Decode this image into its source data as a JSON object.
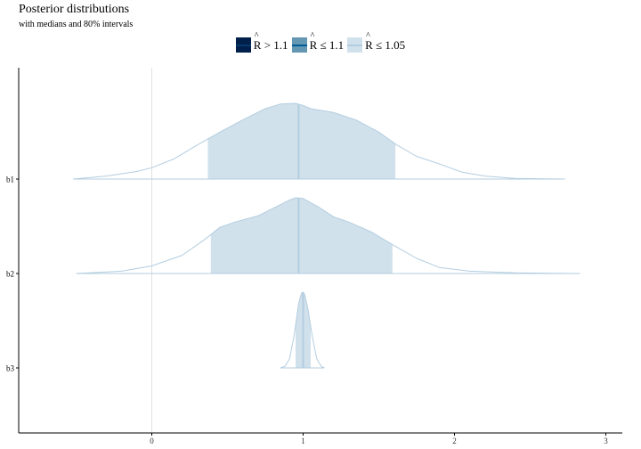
{
  "chart_data": {
    "type": "area",
    "title": "Posterior distributions",
    "subtitle": "with medians and 80% intervals",
    "legend": {
      "placement": "top",
      "entries": [
        {
          "rhat": "R",
          "label": " > 1.1",
          "fill": "#011f4b",
          "line": "#03396c"
        },
        {
          "rhat": "R",
          "label": " ≤ 1.1",
          "fill": "#6497b1",
          "line": "#005b96"
        },
        {
          "rhat": "R",
          "label": " ≤ 1.05",
          "fill": "#d1e1ec",
          "line": "#b3cde0"
        }
      ]
    },
    "xlim": [
      -0.9,
      3.05
    ],
    "x_ticks": [
      0,
      1,
      2,
      3
    ],
    "x_tick_labels": [
      "0",
      "1",
      "2",
      "3"
    ],
    "vline_x": 0,
    "grid": false,
    "fill_color": "#d1e1ec",
    "line_color": "#b3cde0",
    "series": [
      {
        "name": "b1",
        "x": [
          -0.52,
          -0.3,
          -0.1,
          0.0,
          0.15,
          0.3,
          0.45,
          0.6,
          0.75,
          0.85,
          0.95,
          1.0,
          1.05,
          1.2,
          1.35,
          1.5,
          1.62,
          1.75,
          1.9,
          2.05,
          2.2,
          2.4,
          2.6,
          2.73
        ],
        "density": [
          0.0,
          0.04,
          0.1,
          0.15,
          0.27,
          0.45,
          0.62,
          0.78,
          0.93,
          0.99,
          1.0,
          0.97,
          0.93,
          0.88,
          0.78,
          0.62,
          0.45,
          0.3,
          0.2,
          0.09,
          0.04,
          0.01,
          0.003,
          0.0
        ],
        "interval": [
          0.37,
          1.61
        ],
        "median": 0.97
      },
      {
        "name": "b2",
        "x": [
          -0.5,
          -0.2,
          0.0,
          0.2,
          0.35,
          0.45,
          0.55,
          0.7,
          0.8,
          0.9,
          0.95,
          1.0,
          1.1,
          1.2,
          1.3,
          1.45,
          1.6,
          1.75,
          1.9,
          2.1,
          2.4,
          2.65,
          2.83
        ],
        "density": [
          0.0,
          0.03,
          0.1,
          0.24,
          0.45,
          0.61,
          0.68,
          0.76,
          0.86,
          0.96,
          1.0,
          0.99,
          0.88,
          0.75,
          0.68,
          0.55,
          0.37,
          0.2,
          0.08,
          0.03,
          0.008,
          0.002,
          0.0
        ],
        "interval": [
          0.39,
          1.59
        ],
        "median": 0.97
      },
      {
        "name": "b3",
        "x": [
          0.85,
          0.88,
          0.91,
          0.94,
          0.97,
          0.99,
          1.0,
          1.01,
          1.03,
          1.06,
          1.09,
          1.12,
          1.14
        ],
        "density": [
          0.0,
          0.02,
          0.12,
          0.42,
          0.85,
          0.99,
          1.0,
          0.97,
          0.8,
          0.42,
          0.12,
          0.02,
          0.0
        ],
        "interval": [
          0.95,
          1.05
        ],
        "median": 1.0
      }
    ]
  }
}
